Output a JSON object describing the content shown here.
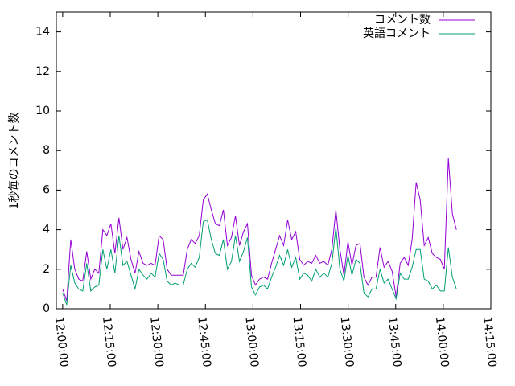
{
  "chart_data": {
    "type": "line",
    "y_label": "1秒毎のコメント数",
    "x": [
      "12:00:00",
      "12:01:16",
      "12:02:32",
      "12:03:48",
      "12:05:04",
      "12:06:20",
      "12:07:36",
      "12:08:52",
      "12:10:08",
      "12:11:24",
      "12:12:40",
      "12:13:56",
      "12:15:12",
      "12:16:28",
      "12:17:44",
      "12:19:00",
      "12:20:16",
      "12:21:32",
      "12:22:48",
      "12:24:04",
      "12:25:20",
      "12:26:36",
      "12:27:52",
      "12:29:08",
      "12:30:24",
      "12:31:40",
      "12:32:56",
      "12:34:12",
      "12:35:28",
      "12:36:44",
      "12:38:00",
      "12:39:16",
      "12:40:32",
      "12:41:48",
      "12:43:04",
      "12:44:20",
      "12:45:36",
      "12:46:52",
      "12:48:08",
      "12:49:24",
      "12:50:40",
      "12:51:56",
      "12:53:12",
      "12:54:28",
      "12:55:44",
      "12:57:00",
      "12:58:16",
      "12:59:32",
      "13:00:48",
      "13:02:04",
      "13:03:20",
      "13:04:36",
      "13:05:52",
      "13:07:08",
      "13:08:24",
      "13:09:40",
      "13:10:56",
      "13:12:12",
      "13:13:28",
      "13:14:44",
      "13:16:00",
      "13:17:16",
      "13:18:32",
      "13:19:48",
      "13:21:04",
      "13:22:20",
      "13:23:36",
      "13:24:52",
      "13:26:08",
      "13:27:24",
      "13:28:40",
      "13:29:56",
      "13:31:12",
      "13:32:28",
      "13:33:44",
      "13:35:00",
      "13:36:16",
      "13:37:32",
      "13:38:48",
      "13:40:04",
      "13:41:20",
      "13:42:36",
      "13:43:52",
      "13:45:08",
      "13:46:24",
      "13:47:40",
      "13:48:56",
      "13:50:12",
      "13:51:28",
      "13:52:44",
      "13:54:00",
      "13:55:16",
      "13:56:32",
      "13:57:48",
      "13:59:04",
      "14:00:20",
      "14:01:36",
      "14:02:52",
      "14:04:08"
    ],
    "series": [
      {
        "name": "コメント数",
        "color": "#9400d3",
        "values": [
          1.0,
          0.4,
          3.5,
          2.0,
          1.5,
          1.4,
          2.9,
          1.5,
          2.0,
          1.8,
          4.0,
          3.7,
          4.3,
          2.8,
          4.6,
          3.0,
          3.6,
          2.5,
          1.8,
          2.9,
          2.3,
          2.2,
          2.3,
          2.2,
          3.7,
          3.5,
          2.0,
          1.7,
          1.7,
          1.7,
          1.7,
          3.0,
          3.5,
          3.3,
          3.7,
          5.5,
          5.8,
          5.0,
          4.3,
          4.2,
          5.0,
          3.2,
          3.6,
          4.7,
          3.2,
          3.9,
          4.3,
          1.7,
          1.2,
          1.5,
          1.6,
          1.5,
          2.3,
          3.0,
          3.7,
          3.2,
          4.5,
          3.5,
          3.9,
          2.5,
          2.2,
          2.4,
          2.3,
          2.7,
          2.3,
          2.4,
          2.2,
          3.0,
          5.0,
          3.0,
          1.7,
          3.4,
          2.2,
          3.2,
          3.3,
          1.6,
          1.2,
          1.6,
          1.6,
          3.1,
          2.1,
          2.4,
          1.9,
          0.6,
          2.3,
          2.6,
          2.2,
          3.5,
          6.4,
          5.5,
          3.2,
          3.6,
          2.8,
          2.6,
          2.5,
          2.0,
          7.6,
          4.8,
          4.0
        ]
      },
      {
        "name": "英語コメント",
        "color": "#009e73",
        "values": [
          0.8,
          0.2,
          2.2,
          1.3,
          1.0,
          0.9,
          2.3,
          0.9,
          1.1,
          1.2,
          3.0,
          2.0,
          3.0,
          1.8,
          3.7,
          2.2,
          2.4,
          1.7,
          1.0,
          2.0,
          1.7,
          1.5,
          1.8,
          1.6,
          2.8,
          2.5,
          1.4,
          1.2,
          1.3,
          1.2,
          1.2,
          2.0,
          2.3,
          2.1,
          2.6,
          4.4,
          4.5,
          3.5,
          2.8,
          2.7,
          3.5,
          2.0,
          2.4,
          3.7,
          2.4,
          2.9,
          3.6,
          1.1,
          0.7,
          1.1,
          1.2,
          1.0,
          1.6,
          2.1,
          2.7,
          2.2,
          3.0,
          2.1,
          2.6,
          1.5,
          1.8,
          1.7,
          1.4,
          2.0,
          1.6,
          1.8,
          1.6,
          2.3,
          4.1,
          2.0,
          1.4,
          2.7,
          1.7,
          2.5,
          2.3,
          0.8,
          0.6,
          1.0,
          1.0,
          2.0,
          1.3,
          1.5,
          1.0,
          0.5,
          1.8,
          1.5,
          1.5,
          2.1,
          3.0,
          3.0,
          1.5,
          1.4,
          1.0,
          1.2,
          0.9,
          0.9,
          3.1,
          1.6,
          1.0
        ]
      }
    ],
    "xlim": [
      "11:58:00",
      "14:15:00"
    ],
    "xticks": [
      "12:00:00",
      "12:15:00",
      "12:30:00",
      "12:45:00",
      "13:00:00",
      "13:15:00",
      "13:30:00",
      "13:45:00",
      "14:00:00",
      "14:15:00"
    ],
    "ylim": [
      0,
      15
    ],
    "yticks": [
      0,
      2,
      4,
      6,
      8,
      10,
      12,
      14
    ],
    "legend": "top-right",
    "grid": false
  }
}
